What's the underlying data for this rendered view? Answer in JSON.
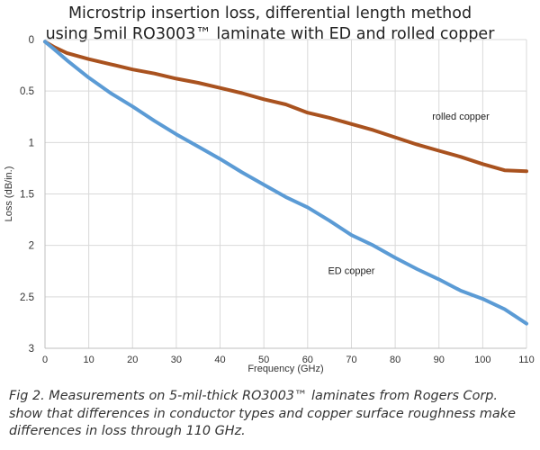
{
  "chart_data": {
    "type": "line",
    "title": [
      "Microstrip insertion loss, differential length method",
      "using 5mil RO3003™ laminate with ED and rolled copper"
    ],
    "xlabel": "Frequency (GHz)",
    "ylabel": "Loss (dB/in.)",
    "xlim": [
      0,
      110
    ],
    "ylim": [
      0,
      3
    ],
    "y_inverted": true,
    "grid": true,
    "x_ticks": [
      "0",
      "10",
      "20",
      "30",
      "40",
      "50",
      "60",
      "70",
      "80",
      "90",
      "100",
      "110"
    ],
    "y_ticks": [
      "0",
      "0.5",
      "1",
      "1.5",
      "2",
      "2.5",
      "3"
    ],
    "series": [
      {
        "name": "rolled copper",
        "color": "#a9521f",
        "x": [
          0,
          2,
          5,
          10,
          15,
          20,
          25,
          30,
          35,
          40,
          45,
          50,
          55,
          60,
          65,
          70,
          75,
          80,
          85,
          90,
          95,
          100,
          105,
          110
        ],
        "y": [
          0.02,
          0.07,
          0.13,
          0.19,
          0.24,
          0.29,
          0.33,
          0.38,
          0.42,
          0.47,
          0.52,
          0.58,
          0.63,
          0.71,
          0.76,
          0.82,
          0.88,
          0.95,
          1.02,
          1.08,
          1.14,
          1.21,
          1.27,
          1.28
        ]
      },
      {
        "name": "ED copper",
        "color": "#5b9bd5",
        "x": [
          0,
          2,
          5,
          10,
          15,
          20,
          25,
          30,
          35,
          40,
          45,
          50,
          55,
          60,
          65,
          70,
          75,
          80,
          85,
          90,
          95,
          100,
          105,
          110
        ],
        "y": [
          0.02,
          0.09,
          0.2,
          0.37,
          0.52,
          0.65,
          0.79,
          0.92,
          1.04,
          1.16,
          1.29,
          1.41,
          1.53,
          1.63,
          1.76,
          1.9,
          2.0,
          2.12,
          2.23,
          2.33,
          2.44,
          2.52,
          2.62,
          2.76
        ]
      }
    ]
  },
  "caption": "Fig 2. Measurements on 5-mil-thick RO3003™ laminates from Rogers Corp. show that differences in conductor types and copper surface roughness make differences in loss through 110 GHz."
}
